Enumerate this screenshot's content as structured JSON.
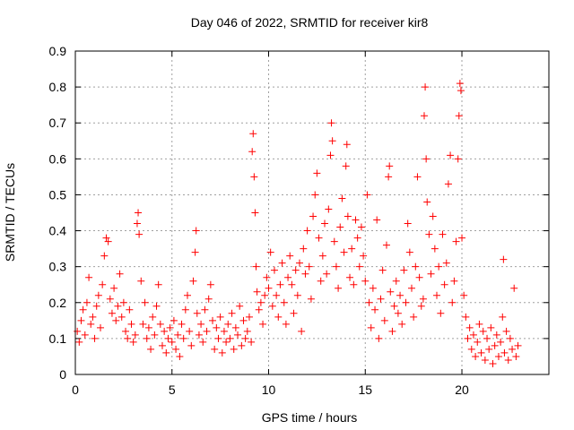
{
  "chart_data": {
    "type": "scatter",
    "title": "Day 046 of 2022, SRMTID for receiver kir8",
    "xlabel": "GPS time / hours",
    "ylabel": "SRMTID / TECUs",
    "xlim": [
      0,
      24.5
    ],
    "ylim": [
      0,
      0.9
    ],
    "xticks": [
      0,
      5,
      10,
      15,
      20
    ],
    "yticks": [
      0,
      0.1,
      0.2,
      0.3,
      0.4,
      0.5,
      0.6,
      0.7,
      0.8,
      0.9
    ],
    "grid": true,
    "marker": "+",
    "color": "#ff0000",
    "series": [
      {
        "name": "kir8",
        "points": [
          [
            0.1,
            0.12
          ],
          [
            0.2,
            0.09
          ],
          [
            0.3,
            0.15
          ],
          [
            0.4,
            0.18
          ],
          [
            0.5,
            0.11
          ],
          [
            0.6,
            0.2
          ],
          [
            0.7,
            0.27
          ],
          [
            0.8,
            0.14
          ],
          [
            0.9,
            0.16
          ],
          [
            1.0,
            0.1
          ],
          [
            1.1,
            0.19
          ],
          [
            1.2,
            0.22
          ],
          [
            1.3,
            0.13
          ],
          [
            1.4,
            0.25
          ],
          [
            1.5,
            0.33
          ],
          [
            1.6,
            0.38
          ],
          [
            1.7,
            0.37
          ],
          [
            1.8,
            0.21
          ],
          [
            1.9,
            0.17
          ],
          [
            2.0,
            0.24
          ],
          [
            2.1,
            0.15
          ],
          [
            2.2,
            0.19
          ],
          [
            2.3,
            0.28
          ],
          [
            2.4,
            0.16
          ],
          [
            2.5,
            0.2
          ],
          [
            2.6,
            0.12
          ],
          [
            2.7,
            0.1
          ],
          [
            2.8,
            0.18
          ],
          [
            2.9,
            0.14
          ],
          [
            3.0,
            0.09
          ],
          [
            3.1,
            0.11
          ],
          [
            3.2,
            0.42
          ],
          [
            3.25,
            0.45
          ],
          [
            3.3,
            0.39
          ],
          [
            3.4,
            0.26
          ],
          [
            3.5,
            0.14
          ],
          [
            3.6,
            0.2
          ],
          [
            3.7,
            0.1
          ],
          [
            3.8,
            0.13
          ],
          [
            3.9,
            0.07
          ],
          [
            4.0,
            0.16
          ],
          [
            4.1,
            0.11
          ],
          [
            4.2,
            0.19
          ],
          [
            4.3,
            0.25
          ],
          [
            4.4,
            0.14
          ],
          [
            4.5,
            0.08
          ],
          [
            4.6,
            0.12
          ],
          [
            4.7,
            0.06
          ],
          [
            4.8,
            0.1
          ],
          [
            4.9,
            0.13
          ],
          [
            5.0,
            0.09
          ],
          [
            5.1,
            0.15
          ],
          [
            5.2,
            0.07
          ],
          [
            5.3,
            0.11
          ],
          [
            5.4,
            0.05
          ],
          [
            5.5,
            0.14
          ],
          [
            5.6,
            0.1
          ],
          [
            5.7,
            0.18
          ],
          [
            5.8,
            0.22
          ],
          [
            5.9,
            0.12
          ],
          [
            6.0,
            0.08
          ],
          [
            6.1,
            0.26
          ],
          [
            6.2,
            0.34
          ],
          [
            6.25,
            0.4
          ],
          [
            6.3,
            0.17
          ],
          [
            6.4,
            0.11
          ],
          [
            6.5,
            0.14
          ],
          [
            6.6,
            0.09
          ],
          [
            6.7,
            0.18
          ],
          [
            6.8,
            0.12
          ],
          [
            6.9,
            0.21
          ],
          [
            7.0,
            0.25
          ],
          [
            7.1,
            0.15
          ],
          [
            7.2,
            0.07
          ],
          [
            7.3,
            0.13
          ],
          [
            7.4,
            0.1
          ],
          [
            7.5,
            0.16
          ],
          [
            7.6,
            0.06
          ],
          [
            7.7,
            0.12
          ],
          [
            7.8,
            0.09
          ],
          [
            7.9,
            0.14
          ],
          [
            8.0,
            0.1
          ],
          [
            8.1,
            0.17
          ],
          [
            8.2,
            0.07
          ],
          [
            8.3,
            0.13
          ],
          [
            8.4,
            0.11
          ],
          [
            8.5,
            0.19
          ],
          [
            8.6,
            0.08
          ],
          [
            8.7,
            0.15
          ],
          [
            8.8,
            0.1
          ],
          [
            8.9,
            0.12
          ],
          [
            9.0,
            0.16
          ],
          [
            9.1,
            0.09
          ],
          [
            9.15,
            0.62
          ],
          [
            9.2,
            0.67
          ],
          [
            9.25,
            0.55
          ],
          [
            9.3,
            0.45
          ],
          [
            9.35,
            0.3
          ],
          [
            9.4,
            0.23
          ],
          [
            9.5,
            0.18
          ],
          [
            9.6,
            0.2
          ],
          [
            9.7,
            0.14
          ],
          [
            9.8,
            0.22
          ],
          [
            9.9,
            0.27
          ],
          [
            10.0,
            0.24
          ],
          [
            10.1,
            0.34
          ],
          [
            10.2,
            0.19
          ],
          [
            10.3,
            0.29
          ],
          [
            10.4,
            0.22
          ],
          [
            10.5,
            0.16
          ],
          [
            10.6,
            0.25
          ],
          [
            10.7,
            0.31
          ],
          [
            10.8,
            0.2
          ],
          [
            10.9,
            0.14
          ],
          [
            11.0,
            0.27
          ],
          [
            11.1,
            0.33
          ],
          [
            11.2,
            0.25
          ],
          [
            11.3,
            0.17
          ],
          [
            11.4,
            0.29
          ],
          [
            11.5,
            0.22
          ],
          [
            11.6,
            0.31
          ],
          [
            11.7,
            0.12
          ],
          [
            11.8,
            0.35
          ],
          [
            11.9,
            0.28
          ],
          [
            12.0,
            0.4
          ],
          [
            12.1,
            0.3
          ],
          [
            12.2,
            0.21
          ],
          [
            12.3,
            0.44
          ],
          [
            12.4,
            0.5
          ],
          [
            12.5,
            0.56
          ],
          [
            12.6,
            0.38
          ],
          [
            12.7,
            0.26
          ],
          [
            12.8,
            0.33
          ],
          [
            12.9,
            0.42
          ],
          [
            13.0,
            0.28
          ],
          [
            13.1,
            0.46
          ],
          [
            13.2,
            0.61
          ],
          [
            13.25,
            0.7
          ],
          [
            13.3,
            0.65
          ],
          [
            13.4,
            0.37
          ],
          [
            13.5,
            0.3
          ],
          [
            13.6,
            0.24
          ],
          [
            13.7,
            0.41
          ],
          [
            13.8,
            0.49
          ],
          [
            13.9,
            0.34
          ],
          [
            14.0,
            0.58
          ],
          [
            14.05,
            0.64
          ],
          [
            14.1,
            0.44
          ],
          [
            14.2,
            0.27
          ],
          [
            14.3,
            0.35
          ],
          [
            14.4,
            0.25
          ],
          [
            14.5,
            0.43
          ],
          [
            14.6,
            0.38
          ],
          [
            14.7,
            0.3
          ],
          [
            14.8,
            0.41
          ],
          [
            14.9,
            0.33
          ],
          [
            15.0,
            0.26
          ],
          [
            15.1,
            0.5
          ],
          [
            15.2,
            0.2
          ],
          [
            15.3,
            0.13
          ],
          [
            15.4,
            0.24
          ],
          [
            15.5,
            0.18
          ],
          [
            15.6,
            0.43
          ],
          [
            15.7,
            0.1
          ],
          [
            15.8,
            0.21
          ],
          [
            15.9,
            0.29
          ],
          [
            16.0,
            0.15
          ],
          [
            16.1,
            0.36
          ],
          [
            16.2,
            0.55
          ],
          [
            16.25,
            0.58
          ],
          [
            16.3,
            0.23
          ],
          [
            16.4,
            0.12
          ],
          [
            16.5,
            0.19
          ],
          [
            16.6,
            0.26
          ],
          [
            16.7,
            0.17
          ],
          [
            16.8,
            0.22
          ],
          [
            16.9,
            0.14
          ],
          [
            17.0,
            0.29
          ],
          [
            17.1,
            0.2
          ],
          [
            17.2,
            0.42
          ],
          [
            17.3,
            0.34
          ],
          [
            17.4,
            0.24
          ],
          [
            17.5,
            0.16
          ],
          [
            17.6,
            0.3
          ],
          [
            17.7,
            0.55
          ],
          [
            17.8,
            0.27
          ],
          [
            17.9,
            0.19
          ],
          [
            18.0,
            0.21
          ],
          [
            18.05,
            0.72
          ],
          [
            18.1,
            0.8
          ],
          [
            18.15,
            0.6
          ],
          [
            18.2,
            0.48
          ],
          [
            18.3,
            0.39
          ],
          [
            18.4,
            0.28
          ],
          [
            18.5,
            0.44
          ],
          [
            18.6,
            0.35
          ],
          [
            18.7,
            0.22
          ],
          [
            18.8,
            0.3
          ],
          [
            18.9,
            0.17
          ],
          [
            19.0,
            0.39
          ],
          [
            19.1,
            0.25
          ],
          [
            19.2,
            0.31
          ],
          [
            19.3,
            0.53
          ],
          [
            19.4,
            0.61
          ],
          [
            19.5,
            0.2
          ],
          [
            19.6,
            0.26
          ],
          [
            19.7,
            0.37
          ],
          [
            19.8,
            0.6
          ],
          [
            19.85,
            0.72
          ],
          [
            19.9,
            0.81
          ],
          [
            19.95,
            0.79
          ],
          [
            20.0,
            0.38
          ],
          [
            20.1,
            0.22
          ],
          [
            20.2,
            0.16
          ],
          [
            20.3,
            0.1
          ],
          [
            20.4,
            0.13
          ],
          [
            20.5,
            0.07
          ],
          [
            20.6,
            0.11
          ],
          [
            20.7,
            0.05
          ],
          [
            20.8,
            0.09
          ],
          [
            20.9,
            0.14
          ],
          [
            21.0,
            0.06
          ],
          [
            21.1,
            0.12
          ],
          [
            21.2,
            0.04
          ],
          [
            21.3,
            0.1
          ],
          [
            21.4,
            0.07
          ],
          [
            21.5,
            0.13
          ],
          [
            21.6,
            0.03
          ],
          [
            21.7,
            0.08
          ],
          [
            21.8,
            0.11
          ],
          [
            21.9,
            0.05
          ],
          [
            22.0,
            0.09
          ],
          [
            22.1,
            0.16
          ],
          [
            22.15,
            0.32
          ],
          [
            22.2,
            0.06
          ],
          [
            22.3,
            0.12
          ],
          [
            22.4,
            0.04
          ],
          [
            22.5,
            0.1
          ],
          [
            22.6,
            0.07
          ],
          [
            22.7,
            0.24
          ],
          [
            22.8,
            0.05
          ],
          [
            22.9,
            0.08
          ]
        ]
      }
    ]
  }
}
